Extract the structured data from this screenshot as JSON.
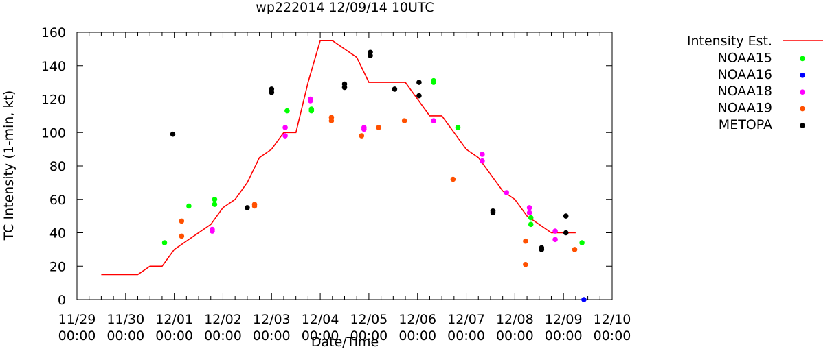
{
  "chart_data": {
    "type": "scatter",
    "title": "wp222014 12/09/14 10UTC",
    "xlabel": "Date/Time",
    "ylabel": "TC Intensity (1-min, kt)",
    "ylim": [
      0,
      160
    ],
    "yticks": [
      0,
      20,
      40,
      60,
      80,
      100,
      120,
      140,
      160
    ],
    "xlim": [
      0,
      11
    ],
    "xunit": "days since 11/29 00:00",
    "xtick_labels": [
      [
        "11/29",
        "00:00"
      ],
      [
        "11/30",
        "00:00"
      ],
      [
        "12/01",
        "00:00"
      ],
      [
        "12/02",
        "00:00"
      ],
      [
        "12/03",
        "00:00"
      ],
      [
        "12/04",
        "00:00"
      ],
      [
        "12/05",
        "00:00"
      ],
      [
        "12/06",
        "00:00"
      ],
      [
        "12/07",
        "00:00"
      ],
      [
        "12/08",
        "00:00"
      ],
      [
        "12/09",
        "00:00"
      ],
      [
        "12/10",
        "00:00"
      ]
    ],
    "grid": false,
    "legend_position": "right",
    "series": [
      {
        "name": "Intensity Est.",
        "style": "line",
        "color": "#ff0000",
        "points": [
          [
            0.5,
            15
          ],
          [
            1.25,
            15
          ],
          [
            1.5,
            20
          ],
          [
            1.75,
            20
          ],
          [
            2.0,
            30
          ],
          [
            2.75,
            45
          ],
          [
            3.0,
            55
          ],
          [
            3.25,
            60
          ],
          [
            3.5,
            70
          ],
          [
            3.75,
            85
          ],
          [
            4.0,
            90
          ],
          [
            4.25,
            100
          ],
          [
            4.5,
            100
          ],
          [
            4.75,
            130
          ],
          [
            5.0,
            155
          ],
          [
            5.25,
            155
          ],
          [
            5.75,
            145
          ],
          [
            6.0,
            130
          ],
          [
            6.75,
            130
          ],
          [
            7.25,
            110
          ],
          [
            7.5,
            110
          ],
          [
            8.0,
            90
          ],
          [
            8.25,
            85
          ],
          [
            8.75,
            65
          ],
          [
            9.0,
            60
          ],
          [
            9.25,
            50
          ],
          [
            9.5,
            45
          ],
          [
            9.75,
            40
          ],
          [
            10.25,
            40
          ]
        ]
      },
      {
        "name": "NOAA15",
        "style": "points",
        "color": "#00ff00",
        "points": [
          [
            1.8,
            34
          ],
          [
            2.3,
            56
          ],
          [
            2.83,
            60
          ],
          [
            2.83,
            57
          ],
          [
            4.32,
            113
          ],
          [
            4.82,
            114
          ],
          [
            4.82,
            113
          ],
          [
            7.33,
            131
          ],
          [
            7.33,
            130
          ],
          [
            7.83,
            103
          ],
          [
            9.33,
            49
          ],
          [
            9.33,
            45
          ],
          [
            10.38,
            34
          ]
        ]
      },
      {
        "name": "NOAA16",
        "style": "points",
        "color": "#0000ff",
        "points": [
          [
            10.42,
            0
          ]
        ]
      },
      {
        "name": "NOAA18",
        "style": "points",
        "color": "#ff00ff",
        "points": [
          [
            2.78,
            42
          ],
          [
            2.78,
            41
          ],
          [
            4.28,
            103
          ],
          [
            4.28,
            98
          ],
          [
            4.8,
            120
          ],
          [
            4.8,
            119
          ],
          [
            5.9,
            103
          ],
          [
            5.9,
            102
          ],
          [
            7.33,
            107
          ],
          [
            8.33,
            87
          ],
          [
            8.33,
            83
          ],
          [
            8.83,
            64
          ],
          [
            9.3,
            55
          ],
          [
            9.3,
            52
          ],
          [
            9.83,
            41
          ],
          [
            9.83,
            36
          ]
        ]
      },
      {
        "name": "NOAA19",
        "style": "points",
        "color": "#ff5000",
        "points": [
          [
            2.15,
            47
          ],
          [
            2.15,
            38
          ],
          [
            3.65,
            57
          ],
          [
            3.65,
            56
          ],
          [
            5.23,
            109
          ],
          [
            5.23,
            107
          ],
          [
            5.85,
            98
          ],
          [
            6.2,
            103
          ],
          [
            6.73,
            107
          ],
          [
            7.73,
            72
          ],
          [
            9.22,
            35
          ],
          [
            9.22,
            21
          ],
          [
            10.23,
            30
          ]
        ]
      },
      {
        "name": "METOPA",
        "style": "points",
        "color": "#000000",
        "points": [
          [
            1.97,
            99
          ],
          [
            3.5,
            55
          ],
          [
            4.0,
            126
          ],
          [
            4.0,
            124
          ],
          [
            5.5,
            129
          ],
          [
            5.5,
            127
          ],
          [
            6.03,
            148
          ],
          [
            6.03,
            146
          ],
          [
            6.53,
            126
          ],
          [
            7.03,
            130
          ],
          [
            7.03,
            122
          ],
          [
            8.55,
            53
          ],
          [
            8.55,
            52
          ],
          [
            9.55,
            31
          ],
          [
            9.55,
            30
          ],
          [
            10.05,
            50
          ],
          [
            10.05,
            40
          ]
        ]
      }
    ]
  }
}
